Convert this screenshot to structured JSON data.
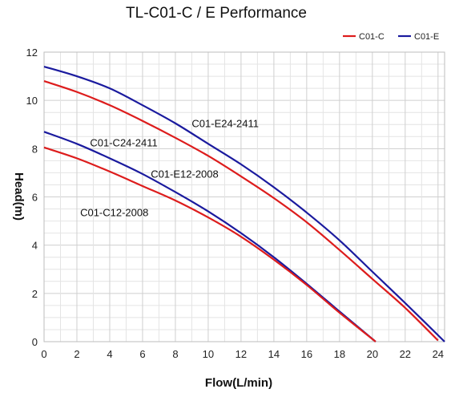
{
  "colors": {
    "c01_c": "#dd1c1c",
    "c01_e": "#1a1a9e"
  },
  "chart_data": {
    "type": "line",
    "title": "TL-C01-C / E Performance",
    "xlabel": "Flow(L/min)",
    "ylabel": "Head(m)",
    "xlim": [
      0,
      24.4
    ],
    "ylim": [
      0,
      12
    ],
    "xticks": [
      0,
      2,
      4,
      6,
      8,
      10,
      12,
      14,
      16,
      18,
      20,
      22,
      24
    ],
    "yticks": [
      0,
      2,
      4,
      6,
      8,
      10,
      12
    ],
    "grid": true,
    "legend": {
      "placement": "top-right",
      "entries": [
        "C01-C",
        "C01-E"
      ]
    },
    "series": [
      {
        "legend": "C01-E",
        "label": "C01-E24-2411",
        "color": "#1a1a9e",
        "x": [
          0,
          2,
          4,
          6,
          8,
          10,
          12,
          14,
          16,
          18,
          20,
          22,
          24.4
        ],
        "y": [
          11.4,
          11.0,
          10.5,
          9.8,
          9.05,
          8.2,
          7.35,
          6.4,
          5.35,
          4.2,
          2.9,
          1.6,
          0
        ]
      },
      {
        "legend": "C01-C",
        "label": "C01-C24-2411",
        "color": "#dd1c1c",
        "x": [
          0,
          2,
          4,
          6,
          8,
          10,
          12,
          14,
          16,
          18,
          20,
          22,
          24
        ],
        "y": [
          10.8,
          10.35,
          9.8,
          9.15,
          8.45,
          7.7,
          6.85,
          5.95,
          4.95,
          3.8,
          2.6,
          1.4,
          0.05
        ]
      },
      {
        "legend": "C01-E",
        "label": "C01-E12-2008",
        "color": "#1a1a9e",
        "x": [
          0,
          2,
          4,
          6,
          8,
          10,
          12,
          14,
          16,
          18,
          20.2
        ],
        "y": [
          8.7,
          8.2,
          7.6,
          6.95,
          6.2,
          5.4,
          4.5,
          3.5,
          2.4,
          1.25,
          0
        ]
      },
      {
        "legend": "C01-C",
        "label": "C01-C12-2008",
        "color": "#dd1c1c",
        "x": [
          0,
          2,
          4,
          6,
          8,
          10,
          12,
          14,
          16,
          18,
          20.2
        ],
        "y": [
          8.05,
          7.6,
          7.05,
          6.45,
          5.85,
          5.15,
          4.35,
          3.4,
          2.35,
          1.2,
          0
        ]
      }
    ],
    "annotations": [
      {
        "text": "C01-E24-2411",
        "x": 9.0,
        "y": 8.9
      },
      {
        "text": "C01-C24-2411",
        "x": 2.8,
        "y": 8.1
      },
      {
        "text": "C01-E12-2008",
        "x": 6.5,
        "y": 6.8
      },
      {
        "text": "C01-C12-2008",
        "x": 2.2,
        "y": 5.2
      }
    ]
  }
}
